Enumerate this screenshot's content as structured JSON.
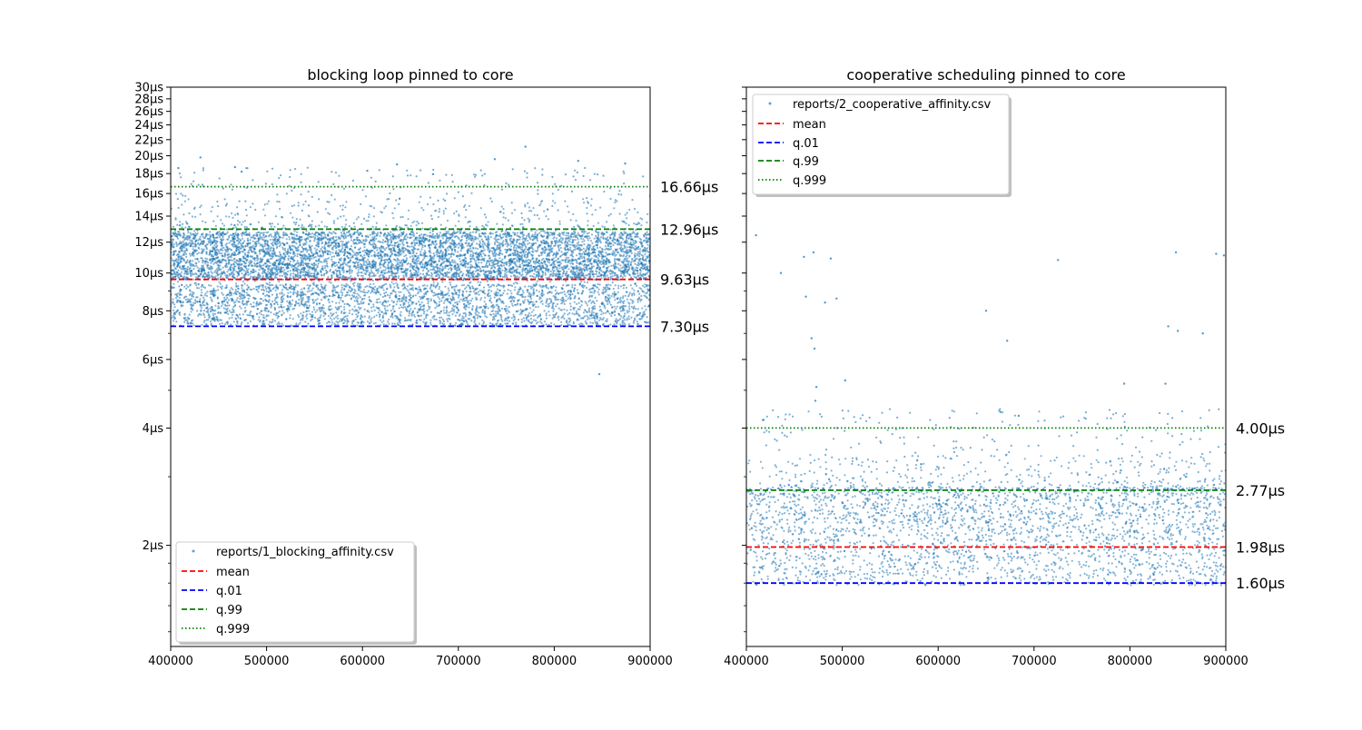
{
  "chart_data": [
    {
      "type": "scatter",
      "title": "blocking loop pinned to core",
      "xlabel": "",
      "ylabel": "",
      "xlim": [
        400000,
        900000
      ],
      "ylim": [
        1.0,
        30.0
      ],
      "yscale": "log",
      "x_ticks": [
        "400000",
        "500000",
        "600000",
        "700000",
        "800000",
        "900000"
      ],
      "y_ticks": [
        {
          "value": 2,
          "label": "2µs"
        },
        {
          "value": 4,
          "label": "4µs"
        },
        {
          "value": 6,
          "label": "6µs"
        },
        {
          "value": 8,
          "label": "8µs"
        },
        {
          "value": 10,
          "label": "10µs"
        },
        {
          "value": 12,
          "label": "12µs"
        },
        {
          "value": 14,
          "label": "14µs"
        },
        {
          "value": 16,
          "label": "16µs"
        },
        {
          "value": 18,
          "label": "18µs"
        },
        {
          "value": 20,
          "label": "20µs"
        },
        {
          "value": 22,
          "label": "22µs"
        },
        {
          "value": 24,
          "label": "24µs"
        },
        {
          "value": 26,
          "label": "26µs"
        },
        {
          "value": 28,
          "label": "28µs"
        },
        {
          "value": 30,
          "label": "30µs"
        }
      ],
      "scatter_series": {
        "name": "reports/1_blocking_affinity.csv",
        "color": "#1f77b4",
        "bands": [
          {
            "lo": 7.3,
            "hi": 9.3
          },
          {
            "lo": 9.6,
            "hi": 10.9
          },
          {
            "lo": 11.0,
            "hi": 12.7
          }
        ],
        "outliers": [
          {
            "x": 408000,
            "y": 18.6
          },
          {
            "x": 431000,
            "y": 19.8
          },
          {
            "x": 467000,
            "y": 18.7
          },
          {
            "x": 474000,
            "y": 18.2
          },
          {
            "x": 605000,
            "y": 18.3
          },
          {
            "x": 636000,
            "y": 19.0
          },
          {
            "x": 738000,
            "y": 19.6
          },
          {
            "x": 770000,
            "y": 21.1
          },
          {
            "x": 825000,
            "y": 19.4
          },
          {
            "x": 874000,
            "y": 19.1
          },
          {
            "x": 847000,
            "y": 5.5
          }
        ]
      },
      "lines": [
        {
          "name": "mean",
          "value": 9.63,
          "label": "9.63µs",
          "color": "#ff0000",
          "style": "dashed"
        },
        {
          "name": "q.01",
          "value": 7.3,
          "label": "7.30µs",
          "color": "#0000ff",
          "style": "dashed"
        },
        {
          "name": "q.99",
          "value": 12.96,
          "label": "12.96µs",
          "color": "#008000",
          "style": "dashed"
        },
        {
          "name": "q.999",
          "value": 16.66,
          "label": "16.66µs",
          "color": "#008000",
          "style": "dotted"
        }
      ],
      "legend_position": "lower-left"
    },
    {
      "type": "scatter",
      "title": "cooperative scheduling pinned to core",
      "xlabel": "",
      "ylabel": "",
      "xlim": [
        400000,
        900000
      ],
      "ylim": [
        1.0,
        30.0
      ],
      "yscale": "log",
      "x_ticks": [
        "400000",
        "500000",
        "600000",
        "700000",
        "800000",
        "900000"
      ],
      "y_ticks": [],
      "scatter_series": {
        "name": "reports/2_cooperative_affinity.csv",
        "color": "#1f77b4",
        "bands": [
          {
            "lo": 1.58,
            "hi": 2.8
          }
        ],
        "outliers": [
          {
            "x": 410000,
            "y": 12.5
          },
          {
            "x": 436000,
            "y": 10.0
          },
          {
            "x": 460000,
            "y": 11.0
          },
          {
            "x": 470000,
            "y": 11.3
          },
          {
            "x": 488000,
            "y": 10.9
          },
          {
            "x": 462000,
            "y": 8.7
          },
          {
            "x": 482000,
            "y": 8.4
          },
          {
            "x": 494000,
            "y": 8.6
          },
          {
            "x": 468000,
            "y": 6.8
          },
          {
            "x": 471000,
            "y": 6.4
          },
          {
            "x": 473000,
            "y": 5.1
          },
          {
            "x": 503000,
            "y": 5.3
          },
          {
            "x": 472000,
            "y": 4.7
          },
          {
            "x": 418000,
            "y": 4.2
          },
          {
            "x": 650000,
            "y": 8.0
          },
          {
            "x": 672000,
            "y": 6.7
          },
          {
            "x": 725000,
            "y": 10.8
          },
          {
            "x": 794000,
            "y": 5.2
          },
          {
            "x": 837000,
            "y": 5.2
          },
          {
            "x": 840000,
            "y": 7.3
          },
          {
            "x": 850000,
            "y": 7.1
          },
          {
            "x": 848000,
            "y": 11.3
          },
          {
            "x": 876000,
            "y": 7.0
          },
          {
            "x": 890000,
            "y": 11.2
          },
          {
            "x": 898000,
            "y": 11.1
          },
          {
            "x": 665000,
            "y": 4.4
          },
          {
            "x": 684000,
            "y": 4.3
          }
        ]
      },
      "lines": [
        {
          "name": "mean",
          "value": 1.98,
          "label": "1.98µs",
          "color": "#ff0000",
          "style": "dashed"
        },
        {
          "name": "q.01",
          "value": 1.6,
          "label": "1.60µs",
          "color": "#0000ff",
          "style": "dashed"
        },
        {
          "name": "q.99",
          "value": 2.77,
          "label": "2.77µs",
          "color": "#008000",
          "style": "dashed"
        },
        {
          "name": "q.999",
          "value": 4.0,
          "label": "4.00µs",
          "color": "#008000",
          "style": "dotted"
        }
      ],
      "legend_position": "upper-left"
    }
  ]
}
